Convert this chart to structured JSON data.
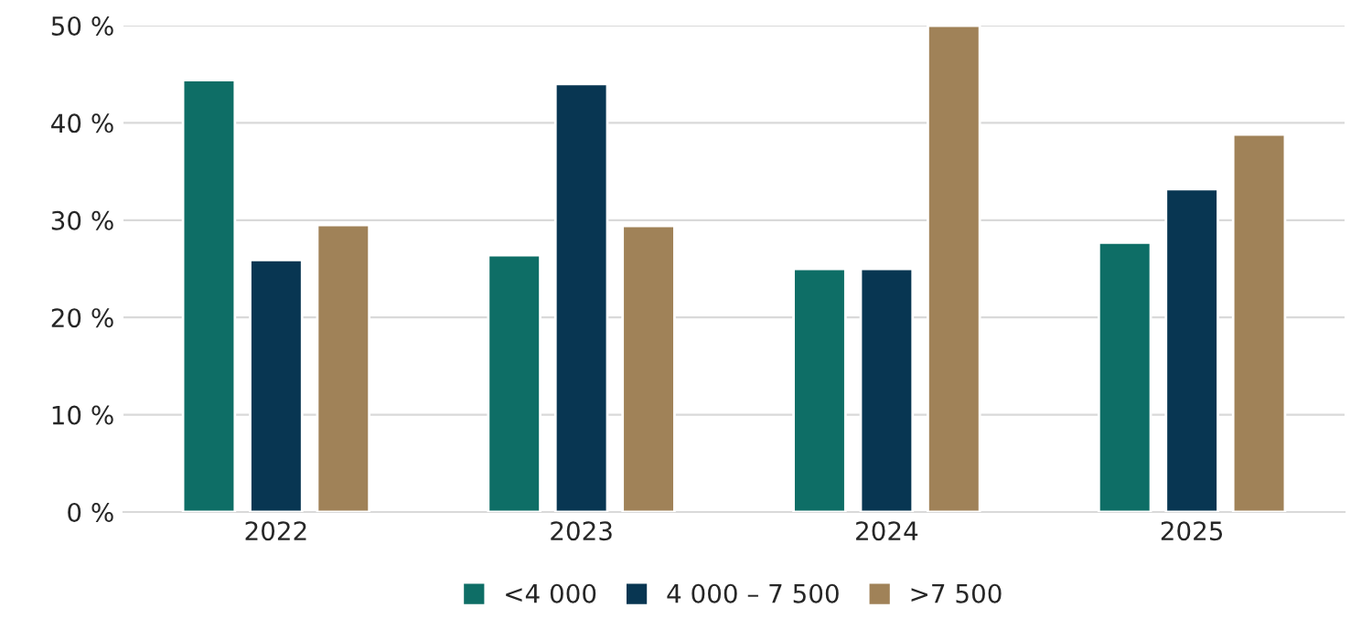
{
  "chart_data": {
    "type": "bar",
    "categories": [
      "2022",
      "2023",
      "2024",
      "2025"
    ],
    "series": [
      {
        "name": "<4 000",
        "color": "#0e6e66",
        "values": [
          44.4,
          26.4,
          25,
          27.7
        ]
      },
      {
        "name": "4 000 – 7 500",
        "color": "#083652",
        "values": [
          25.9,
          44,
          25,
          33.2
        ]
      },
      {
        "name": ">7 500",
        "color": "#a08258",
        "values": [
          29.5,
          29.4,
          50,
          38.8
        ]
      }
    ],
    "ylim": [
      0,
      50
    ],
    "yticks": [
      {
        "value": 0,
        "label": "0 %"
      },
      {
        "value": 10,
        "label": "10 %"
      },
      {
        "value": 20,
        "label": "20 %"
      },
      {
        "value": 30,
        "label": "30 %"
      },
      {
        "value": 40,
        "label": "40 %"
      },
      {
        "value": 50,
        "label": "50 %"
      }
    ],
    "grid": "y",
    "legend": "bottom"
  }
}
